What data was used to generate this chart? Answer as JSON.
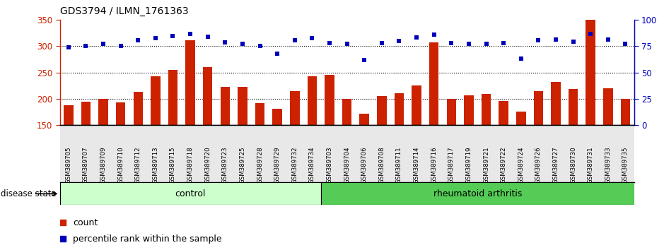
{
  "title": "GDS3794 / ILMN_1761363",
  "samples": [
    "GSM389705",
    "GSM389707",
    "GSM389709",
    "GSM389710",
    "GSM389712",
    "GSM389713",
    "GSM389715",
    "GSM389718",
    "GSM389720",
    "GSM389723",
    "GSM389725",
    "GSM389728",
    "GSM389729",
    "GSM389732",
    "GSM389734",
    "GSM389703",
    "GSM389704",
    "GSM389706",
    "GSM389708",
    "GSM389711",
    "GSM389714",
    "GSM389716",
    "GSM389717",
    "GSM389719",
    "GSM389721",
    "GSM389722",
    "GSM389724",
    "GSM389726",
    "GSM389727",
    "GSM389730",
    "GSM389731",
    "GSM389733",
    "GSM389735"
  ],
  "bar_values": [
    188,
    195,
    200,
    193,
    213,
    243,
    255,
    311,
    260,
    222,
    223,
    192,
    181,
    215,
    243,
    245,
    200,
    172,
    205,
    210,
    225,
    308,
    200,
    207,
    209,
    196,
    175,
    215,
    232,
    219,
    350,
    220,
    200
  ],
  "dot_values": [
    298,
    301,
    305,
    301,
    311,
    316,
    319,
    323,
    318,
    307,
    305,
    301,
    286,
    311,
    315,
    306,
    305,
    274,
    306,
    310,
    317,
    322,
    306,
    305,
    305,
    306,
    277,
    311,
    313,
    309,
    324,
    313,
    305
  ],
  "n_control": 15,
  "n_rheumatoid": 18,
  "bar_color": "#cc2200",
  "dot_color": "#0000bb",
  "control_color": "#ccffcc",
  "rheumatoid_color": "#55cc55",
  "bar_bottom": 150,
  "ylim_left": [
    150,
    350
  ],
  "ylim_right": [
    0,
    100
  ],
  "yticks_left": [
    150,
    200,
    250,
    300,
    350
  ],
  "yticks_right": [
    0,
    25,
    50,
    75,
    100
  ],
  "grid_values": [
    200,
    250,
    300
  ],
  "left_axis_color": "#cc2200",
  "right_axis_color": "#0000bb",
  "label_fontsize": 8,
  "tick_fontsize": 8.5
}
